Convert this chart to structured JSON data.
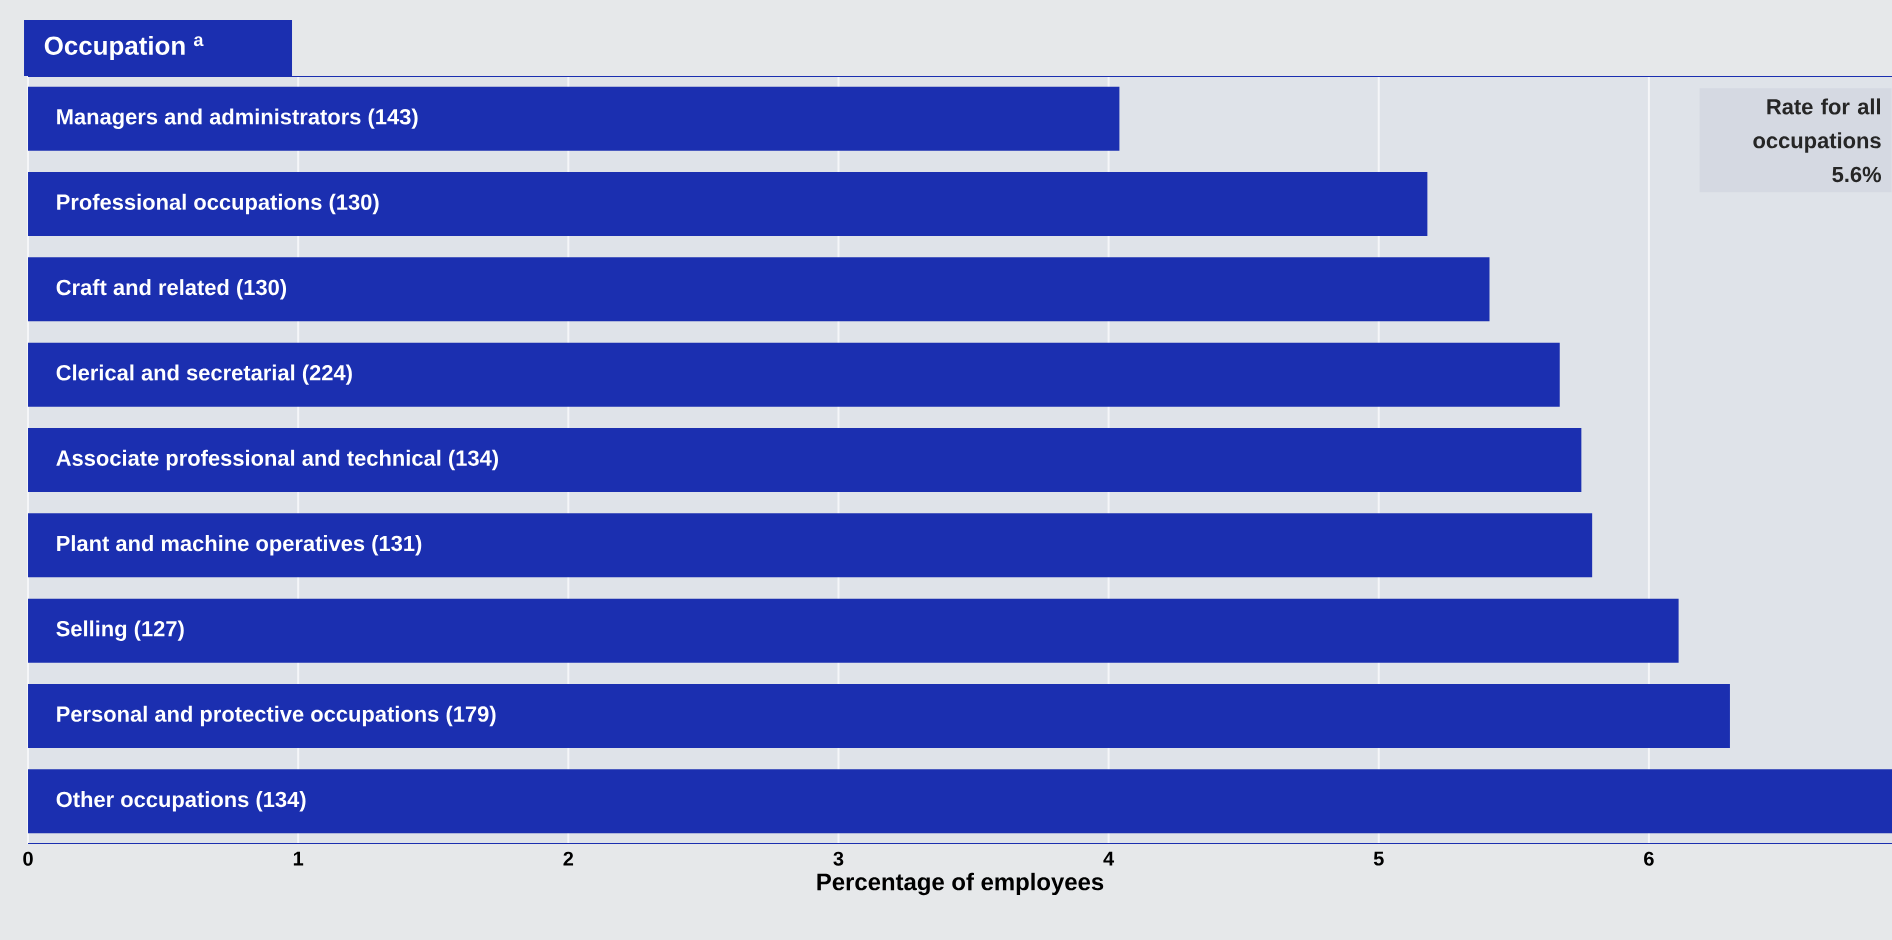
{
  "chart_data": {
    "type": "bar",
    "orientation": "horizontal",
    "title": "Occupation $^{a}$",
    "xlabel": "Percentage of employees",
    "categories": [
      "Managers and administrators (143)",
      "Professional occupations (130)",
      "Craft and related (130)",
      "Clerical and secretarial (224)",
      "Associate professional and technical (134)",
      "Plant and machine operatives (131)",
      "Selling (127)",
      "Personal and protective occupations (179)",
      "Other occupations (134)"
    ],
    "values": [
      4.04,
      5.18,
      5.41,
      5.67,
      5.75,
      5.79,
      6.11,
      6.3,
      6.9
    ],
    "color": "#1b2fb0",
    "xlim": [
      0,
      6.9
    ],
    "xticks": [
      0,
      1,
      2,
      3,
      4,
      5,
      6
    ],
    "grid": "x",
    "annotations": [
      "Rate for all occupations 5.6%"
    ]
  }
}
